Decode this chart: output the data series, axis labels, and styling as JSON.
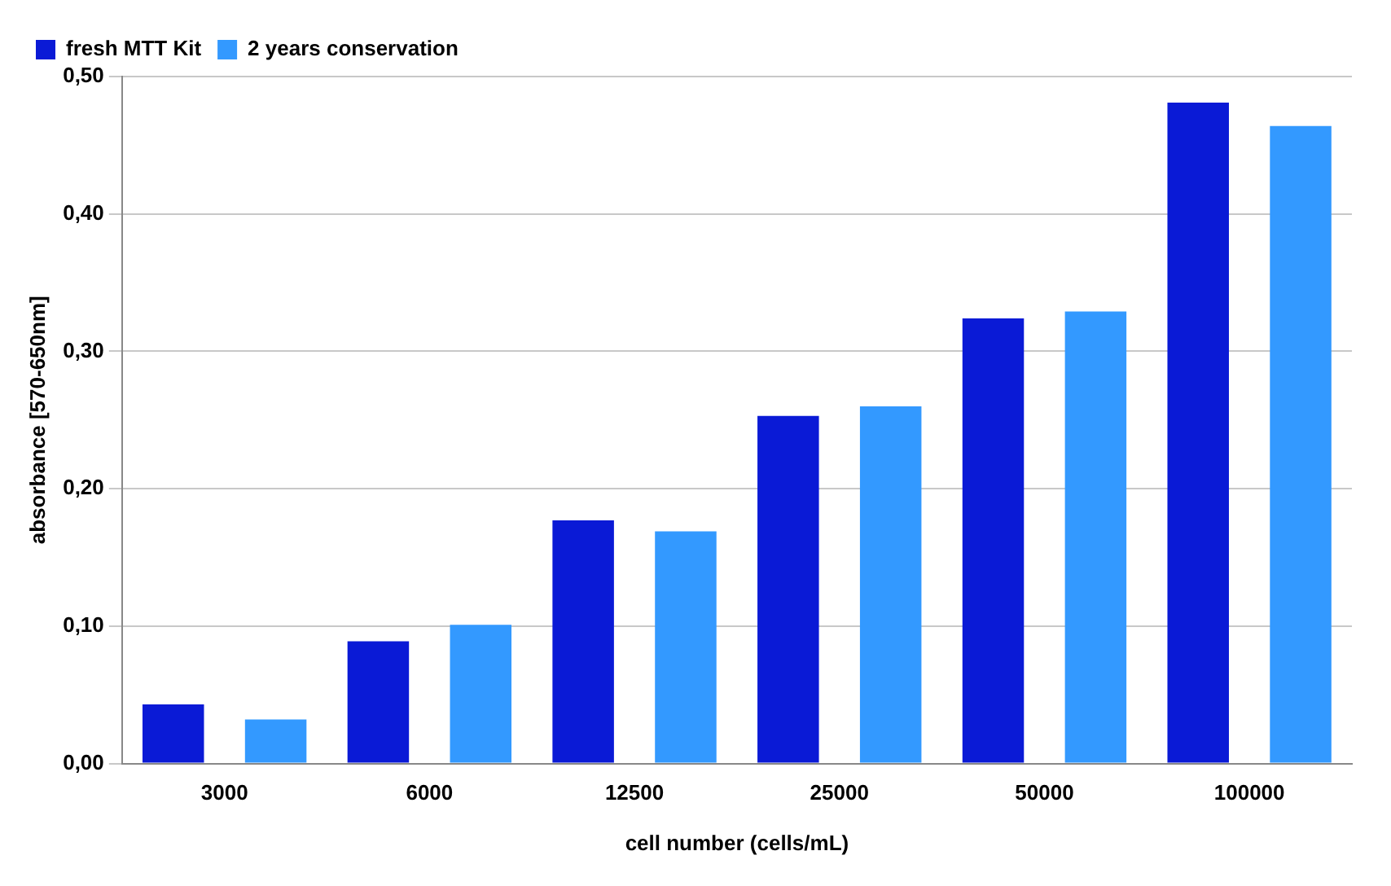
{
  "chart_data": {
    "type": "bar",
    "xlabel": "cell number (cells/mL)",
    "ylabel": "absorbance [570-650nm]",
    "categories": [
      "3000",
      "6000",
      "12500",
      "25000",
      "50000",
      "100000"
    ],
    "series": [
      {
        "name": "fresh MTT Kit",
        "color": "#0a1ad6",
        "values": [
          0.043,
          0.089,
          0.177,
          0.253,
          0.324,
          0.481
        ]
      },
      {
        "name": "2 years conservation",
        "color": "#3399ff",
        "values": [
          0.032,
          0.101,
          0.169,
          0.26,
          0.329,
          0.464
        ]
      }
    ],
    "ylim": [
      0,
      0.5
    ],
    "yticks": [
      {
        "value": 0,
        "label": "0,00"
      },
      {
        "value": 0.1,
        "label": "0,10"
      },
      {
        "value": 0.2,
        "label": "0,20"
      },
      {
        "value": 0.3,
        "label": "0,30"
      },
      {
        "value": 0.4,
        "label": "0,40"
      },
      {
        "value": 0.5,
        "label": "0,50"
      }
    ],
    "grid": "y",
    "legend": "top left"
  }
}
